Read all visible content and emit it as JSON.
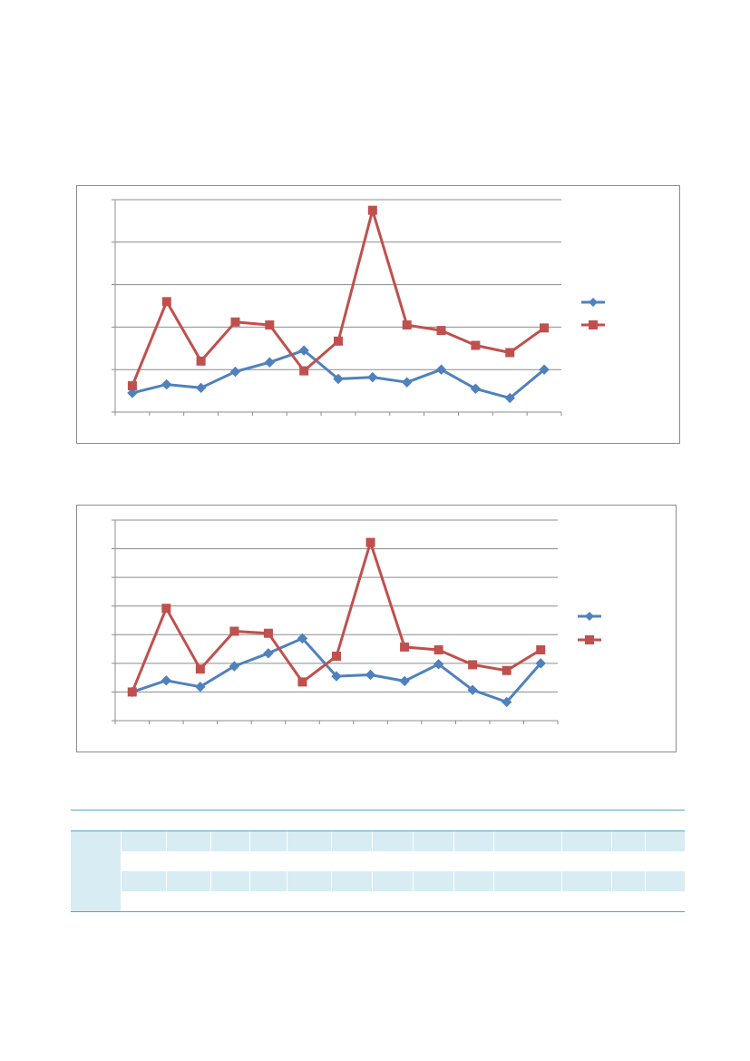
{
  "chart_data": [
    {
      "type": "line",
      "x": [
        1,
        2,
        3,
        4,
        5,
        6,
        7,
        8,
        9,
        10,
        11,
        12,
        13
      ],
      "ylim": [
        0,
        5
      ],
      "grid": true,
      "legend_position": "right",
      "series": [
        {
          "color": "#4f81bd",
          "marker": "diamond",
          "values": [
            0.45,
            0.65,
            0.57,
            0.95,
            1.17,
            1.45,
            0.78,
            0.82,
            0.7,
            1.0,
            0.55,
            0.33,
            1.0
          ]
        },
        {
          "color": "#c0504d",
          "marker": "square",
          "values": [
            0.62,
            2.6,
            1.2,
            2.12,
            2.05,
            0.97,
            1.67,
            4.75,
            2.05,
            1.92,
            1.57,
            1.4,
            1.98
          ]
        }
      ]
    },
    {
      "type": "line",
      "x": [
        1,
        2,
        3,
        4,
        5,
        6,
        7,
        8,
        9,
        10,
        11,
        12,
        13
      ],
      "ylim": [
        0,
        7
      ],
      "grid": true,
      "legend_position": "right",
      "series": [
        {
          "color": "#4f81bd",
          "marker": "diamond",
          "values": [
            1.0,
            1.4,
            1.18,
            1.9,
            2.35,
            2.87,
            1.55,
            1.6,
            1.38,
            1.97,
            1.07,
            0.65,
            2.0
          ]
        },
        {
          "color": "#c0504d",
          "marker": "square",
          "values": [
            1.0,
            3.92,
            1.8,
            3.12,
            3.05,
            1.35,
            2.25,
            6.22,
            2.57,
            2.47,
            1.95,
            1.75,
            2.47
          ]
        }
      ]
    }
  ],
  "table": {
    "rows": 4,
    "columns": 14
  }
}
